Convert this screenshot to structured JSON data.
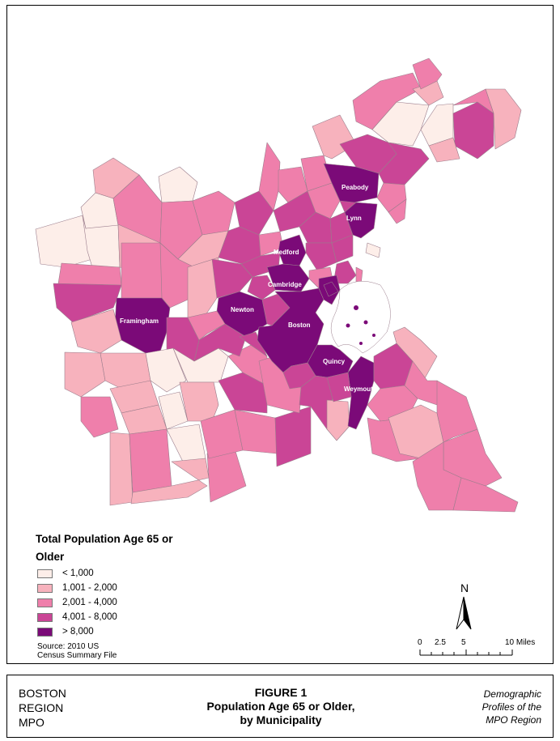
{
  "colors": {
    "lt_1000": "#fdeee9",
    "c1001_2000": "#f7b2bd",
    "c2001_4000": "#ef7fab",
    "c4001_8000": "#ca4596",
    "gt_8000": "#7b0a78",
    "water": "#ffffff",
    "border": "#9b7d8c"
  },
  "legend": {
    "title": "Total Population Age 65 or Older",
    "classes": [
      {
        "label": "< 1,000",
        "color": "#fdeee9"
      },
      {
        "label": "1,001 - 2,000",
        "color": "#f7b2bd"
      },
      {
        "label": "2,001 - 4,000",
        "color": "#ef7fab"
      },
      {
        "label": "4,001 - 8,000",
        "color": "#ca4596"
      },
      {
        "label": "> 8,000",
        "color": "#7b0a78"
      }
    ],
    "source_line1": "Source:  2010 US",
    "source_line2": "Census Summary File"
  },
  "map": {
    "labeled_municipalities": [
      "Peabody",
      "Lynn",
      "Medford",
      "Cambridge",
      "Newton",
      "Framingham",
      "Boston",
      "Quincy",
      "Weymouth"
    ]
  },
  "north_arrow": {
    "label": "N"
  },
  "scale_bar": {
    "ticks": [
      "0",
      "2.5",
      "5",
      "10 Miles"
    ]
  },
  "footer": {
    "org_line1": "BOSTON",
    "org_line2": "REGION",
    "org_line3": "MPO",
    "figure_line1": "FIGURE 1",
    "figure_line2": "Population Age 65 or Older,",
    "figure_line3": "by Municipality",
    "subtitle_line1": "Demographic",
    "subtitle_line2": "Profiles of the",
    "subtitle_line3": "MPO Region"
  }
}
